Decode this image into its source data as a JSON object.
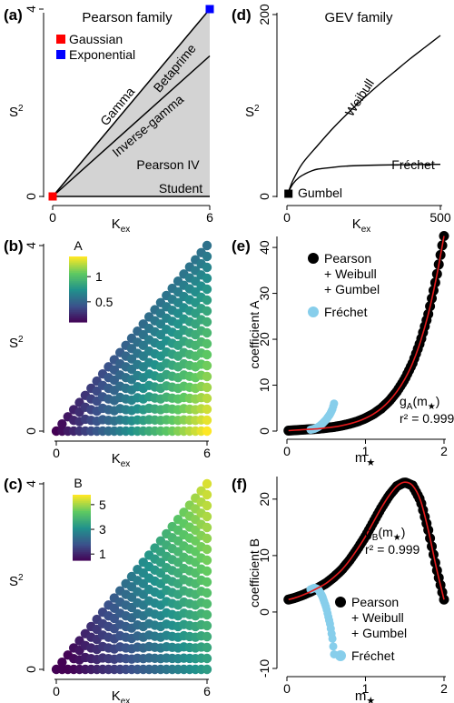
{
  "colors": {
    "gaussian": "#ff0000",
    "exponential": "#0000ff",
    "fill_region": "#d3d3d3",
    "fit_curve": "#e41a1c",
    "pearson_points": "#000000",
    "frechet_points": "#87ceeb",
    "colormap": [
      "#440154",
      "#3b528b",
      "#21918c",
      "#5ec962",
      "#fde725"
    ]
  },
  "chart_data": [
    {
      "id": "a",
      "type": "area",
      "panel_label": "(a)",
      "title": "Pearson family",
      "xlabel_main": "K",
      "xlabel_sub": "ex",
      "ylabel_main": "S",
      "ylabel_sup": "2",
      "xlim": [
        0,
        6
      ],
      "ylim": [
        0,
        4
      ],
      "xticks": [
        0,
        6
      ],
      "yticks": [
        0,
        4
      ],
      "xtick_labels": [
        "0",
        "6"
      ],
      "ytick_labels": [
        "0",
        "4"
      ],
      "lines": [
        {
          "name": "Gamma",
          "x": [
            0,
            6
          ],
          "y": [
            0,
            4
          ]
        },
        {
          "name": "Inverse-gamma",
          "x": [
            0,
            6
          ],
          "y": [
            0,
            3.0
          ]
        },
        {
          "name": "Student",
          "x": [
            0,
            6
          ],
          "y": [
            0,
            0
          ]
        }
      ],
      "region_labels": [
        "Betaprime",
        "Pearson IV"
      ],
      "points": [
        {
          "name": "Gaussian",
          "x": 0,
          "y": 0,
          "color": "#ff0000"
        },
        {
          "name": "Exponential",
          "x": 6,
          "y": 4,
          "color": "#0000ff"
        }
      ],
      "legend": [
        "Gaussian",
        "Exponential"
      ]
    },
    {
      "id": "d",
      "type": "line",
      "panel_label": "(d)",
      "title": "GEV family",
      "xlabel_main": "K",
      "xlabel_sub": "ex",
      "ylabel_main": "S",
      "ylabel_sup": "2",
      "xlim": [
        0,
        500
      ],
      "ylim": [
        0,
        200
      ],
      "xticks": [
        0,
        500
      ],
      "yticks": [
        0,
        200
      ],
      "xtick_labels": [
        "0",
        "500"
      ],
      "ytick_labels": [
        "0",
        "200"
      ],
      "series": [
        {
          "name": "Weibull",
          "x": [
            5,
            20,
            50,
            100,
            150,
            200,
            250,
            300,
            350,
            400,
            450,
            500
          ],
          "y": [
            5,
            18,
            36,
            56,
            75,
            92,
            108,
            123,
            137,
            151,
            164,
            177
          ]
        },
        {
          "name": "Fréchet",
          "x": [
            5,
            20,
            40,
            60,
            80,
            100,
            150,
            200,
            300,
            400,
            500
          ],
          "y": [
            5,
            14,
            21,
            25,
            28,
            30,
            32,
            33.5,
            34.5,
            35,
            35.3
          ]
        }
      ],
      "points": [
        {
          "name": "Gumbel",
          "x": 5,
          "y": 3
        }
      ]
    },
    {
      "id": "b",
      "type": "heatmap",
      "panel_label": "(b)",
      "colorbar_title": "A",
      "xlabel_main": "K",
      "xlabel_sub": "ex",
      "ylabel_main": "S",
      "ylabel_sup": "2",
      "xlim": [
        0,
        6
      ],
      "ylim": [
        0,
        4
      ],
      "xticks": [
        0,
        6
      ],
      "yticks": [
        0,
        4
      ],
      "xtick_labels": [
        "0",
        "6"
      ],
      "ytick_labels": [
        "0",
        "4"
      ],
      "domain": "S2 <= (2/3) * Kex",
      "value_range": [
        0.1,
        1.4
      ],
      "colorbar_ticks": [
        0.5,
        1
      ],
      "colorbar_tick_labels": [
        "0.5",
        "1"
      ],
      "trend": "increases with Kex, decreases with S2 (max ~1.4 at Kex=6, S2=0)"
    },
    {
      "id": "e",
      "type": "scatter",
      "panel_label": "(e)",
      "xlabel_main": "m",
      "xlabel_star": "★",
      "ylabel": "coefficient A",
      "xlim": [
        0,
        2
      ],
      "ylim": [
        0,
        42
      ],
      "xticks": [
        0,
        1,
        2
      ],
      "yticks": [
        0,
        10,
        20,
        30,
        40
      ],
      "xtick_labels": [
        "0",
        "1",
        "2"
      ],
      "ytick_labels": [
        "0",
        "10",
        "20",
        "30",
        "40"
      ],
      "series": [
        {
          "name": "Pearson + Weibull + Gumbel",
          "x": [
            0.02,
            0.1,
            0.2,
            0.3,
            0.4,
            0.5,
            0.6,
            0.7,
            0.8,
            0.9,
            1.0,
            1.1,
            1.2,
            1.3,
            1.4,
            1.5,
            1.6,
            1.7,
            1.8,
            1.9,
            2.0
          ],
          "y": [
            0.1,
            0.2,
            0.3,
            0.4,
            0.5,
            0.7,
            0.9,
            1.2,
            1.6,
            2.1,
            2.8,
            3.7,
            4.9,
            6.5,
            8.6,
            11.3,
            14.8,
            19.5,
            25.5,
            33.2,
            42.5
          ]
        },
        {
          "name": "Fréchet",
          "x": [
            0.3,
            0.35,
            0.4,
            0.45,
            0.5,
            0.55,
            0.58,
            0.6
          ],
          "y": [
            0.3,
            0.5,
            0.9,
            1.6,
            2.5,
            3.7,
            4.8,
            6.0
          ]
        }
      ],
      "fit": {
        "name": "gA(m★)",
        "label_main": "g",
        "label_sub": "A",
        "label_arg": "(m",
        "label_close": ")",
        "r2_label": "r² = 0.999"
      },
      "legend_lines": [
        "Pearson",
        "+ Weibull",
        "+ Gumbel",
        "Fréchet"
      ]
    },
    {
      "id": "c",
      "type": "heatmap",
      "panel_label": "(c)",
      "colorbar_title": "B",
      "xlabel_main": "K",
      "xlabel_sub": "ex",
      "ylabel_main": "S",
      "ylabel_sup": "2",
      "xlim": [
        0,
        6
      ],
      "ylim": [
        0,
        4
      ],
      "xticks": [
        0,
        6
      ],
      "yticks": [
        0,
        4
      ],
      "xtick_labels": [
        "0",
        "6"
      ],
      "ytick_labels": [
        "0",
        "4"
      ],
      "domain": "S2 <= (2/3) * Kex",
      "value_range": [
        0.5,
        5.8
      ],
      "colorbar_ticks": [
        1,
        3,
        5
      ],
      "colorbar_tick_labels": [
        "1",
        "3",
        "5"
      ],
      "trend": "increases with S2 (max ~5.8 at Kex=6, S2=4), low at small Kex"
    },
    {
      "id": "f",
      "type": "scatter",
      "panel_label": "(f)",
      "xlabel_main": "m",
      "xlabel_star": "★",
      "ylabel": "coefficient B",
      "xlim": [
        0,
        2
      ],
      "ylim": [
        -10,
        24
      ],
      "xticks": [
        0,
        1,
        2
      ],
      "yticks": [
        -10,
        0,
        10,
        20
      ],
      "xtick_labels": [
        "0",
        "1",
        "2"
      ],
      "ytick_labels": [
        "-10",
        "0",
        "10",
        "20"
      ],
      "series": [
        {
          "name": "Pearson + Weibull + Gumbel",
          "x": [
            0.02,
            0.1,
            0.2,
            0.3,
            0.4,
            0.5,
            0.6,
            0.7,
            0.8,
            0.9,
            1.0,
            1.1,
            1.2,
            1.3,
            1.4,
            1.5,
            1.6,
            1.7,
            1.8,
            1.9,
            2.0
          ],
          "y": [
            2.2,
            2.5,
            3.0,
            3.6,
            4.3,
            5.1,
            6.2,
            7.5,
            9.2,
            11.2,
            13.4,
            15.9,
            18.4,
            20.6,
            22.3,
            23.0,
            22.4,
            19.8,
            14.5,
            8.0,
            2.2
          ]
        },
        {
          "name": "Fréchet",
          "x": [
            0.3,
            0.35,
            0.4,
            0.45,
            0.5,
            0.55,
            0.58,
            0.6
          ],
          "y": [
            4.0,
            4.3,
            4.0,
            2.8,
            0.8,
            -2.2,
            -4.8,
            -7.5
          ]
        }
      ],
      "fit": {
        "name": "gB(m★)",
        "label_main": "g",
        "label_sub": "B",
        "label_arg": "(m",
        "label_close": ")",
        "r2_label": "r² = 0.999"
      },
      "legend_lines": [
        "Pearson",
        "+ Weibull",
        "+ Gumbel",
        "Fréchet"
      ]
    }
  ]
}
